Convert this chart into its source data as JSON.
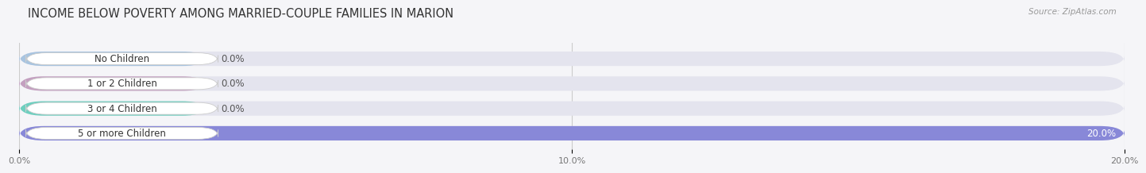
{
  "title": "INCOME BELOW POVERTY AMONG MARRIED-COUPLE FAMILIES IN MARION",
  "source": "Source: ZipAtlas.com",
  "categories": [
    "No Children",
    "1 or 2 Children",
    "3 or 4 Children",
    "5 or more Children"
  ],
  "values": [
    0.0,
    0.0,
    0.0,
    20.0
  ],
  "bar_colors": [
    "#a8c4e0",
    "#c4a0c0",
    "#6ecfbf",
    "#8888d8"
  ],
  "bar_bg_color": "#e4e4ee",
  "xlim": [
    0,
    20.0
  ],
  "xticks": [
    0.0,
    10.0,
    20.0
  ],
  "xtick_labels": [
    "0.0%",
    "10.0%",
    "20.0%"
  ],
  "title_fontsize": 10.5,
  "label_fontsize": 8.5,
  "tick_fontsize": 8,
  "source_fontsize": 7.5,
  "background_color": "#f5f5f8",
  "bar_height": 0.58,
  "value_label_color": "#555555"
}
